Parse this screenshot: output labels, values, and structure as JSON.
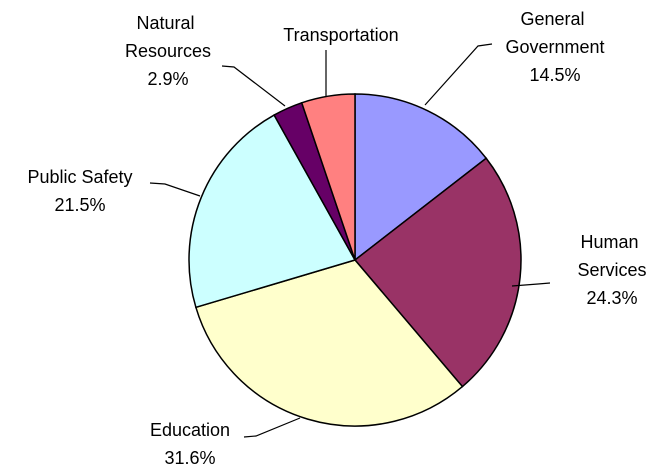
{
  "chart_data": {
    "type": "pie",
    "categories": [
      "General Government",
      "Human Services",
      "Education",
      "Public Safety",
      "Natural Resources",
      "Transportation"
    ],
    "values": [
      14.5,
      24.3,
      31.6,
      21.5,
      2.9,
      5.2
    ],
    "value_labels": [
      "14.5%",
      "24.3%",
      "31.6%",
      "21.5%",
      "2.9%",
      null
    ],
    "colors": [
      "#9999ff",
      "#993366",
      "#ffffcc",
      "#ccffff",
      "#660066",
      "#ff8080"
    ]
  }
}
